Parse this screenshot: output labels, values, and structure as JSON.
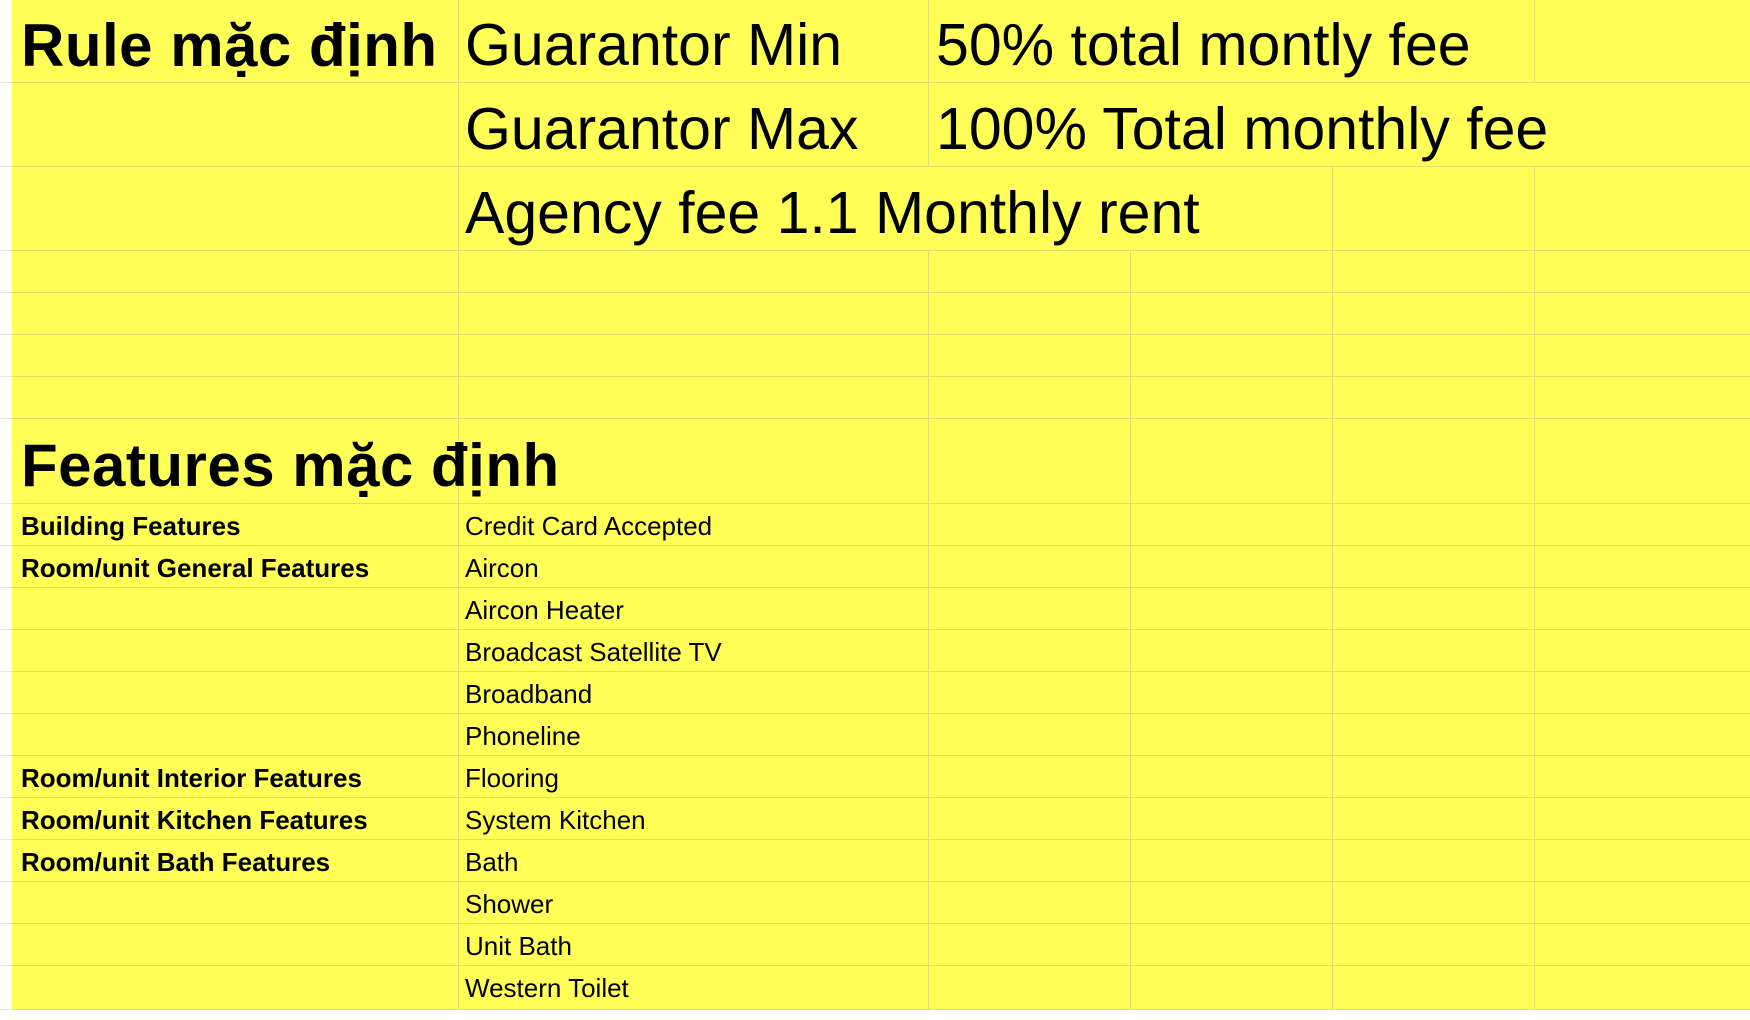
{
  "rules": {
    "heading": "Rule mặc định",
    "guarantor_min_label": "Guarantor Min",
    "guarantor_min_value": "50% total montly fee",
    "guarantor_max_label": "Guarantor Max",
    "guarantor_max_value": "100% Total monthly fee",
    "agency_fee": "Agency fee  1.1 Monthly rent"
  },
  "features": {
    "heading": "Features mặc định",
    "rows": [
      {
        "category": "Building Features",
        "item": "Credit Card Accepted"
      },
      {
        "category": "Room/unit General Features",
        "item": "Aircon"
      },
      {
        "category": "",
        "item": "Aircon Heater"
      },
      {
        "category": "",
        "item": "Broadcast Satellite TV"
      },
      {
        "category": "",
        "item": "Broadband"
      },
      {
        "category": "",
        "item": "Phoneline"
      },
      {
        "category": "Room/unit Interior Features",
        "item": "Flooring"
      },
      {
        "category": "Room/unit Kitchen Features",
        "item": "System Kitchen"
      },
      {
        "category": "Room/unit Bath Features",
        "item": "Bath"
      },
      {
        "category": "",
        "item": "Shower"
      },
      {
        "category": "",
        "item": "Unit Bath"
      },
      {
        "category": "",
        "item": "Western Toilet"
      }
    ]
  },
  "colors": {
    "cell_fill": "#ffff58",
    "grid_line": "#e2df66",
    "text": "#000000"
  }
}
